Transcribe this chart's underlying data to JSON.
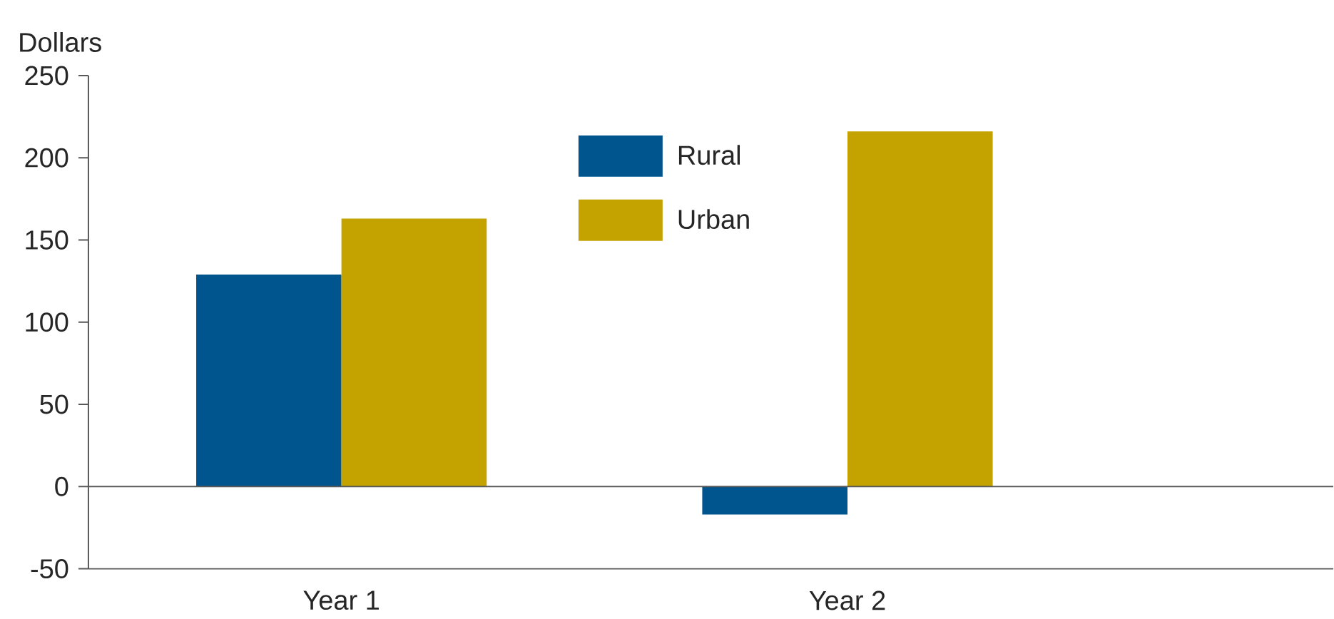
{
  "chart_data": {
    "type": "bar",
    "ylabel": "Dollars",
    "categories": [
      "Year 1",
      "Year 2"
    ],
    "series": [
      {
        "name": "Rural",
        "color": "#00558f",
        "values": [
          129,
          -17
        ]
      },
      {
        "name": "Urban",
        "color": "#c4a300",
        "values": [
          163,
          216
        ]
      }
    ],
    "ylim": [
      -50,
      250
    ],
    "yticks": [
      -50,
      0,
      50,
      100,
      150,
      200,
      250
    ],
    "legend": "top"
  }
}
